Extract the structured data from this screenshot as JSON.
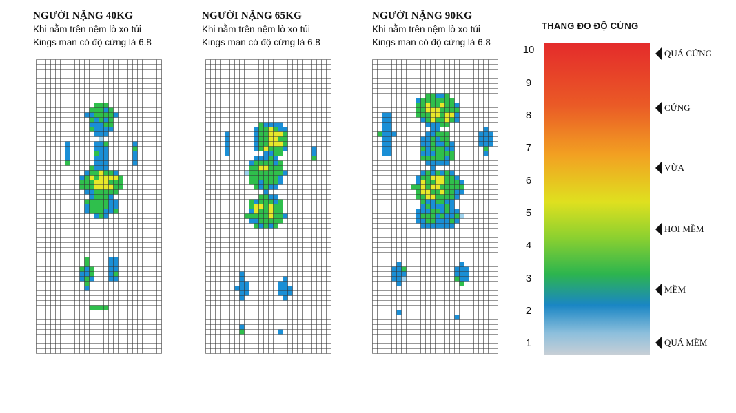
{
  "panels": [
    {
      "title": "NGƯỜI NẶNG 40KG",
      "line1": "Khi nằm trên nệm lò xo túi",
      "line2": "Kings man có độ cứng là 6.8"
    },
    {
      "title": "NGƯỜI NẶNG 65KG",
      "line1": "Khi nằm trên nệm lò xo túi",
      "line2": "Kings man có độ cứng là 6.8"
    },
    {
      "title": "NGƯỜI NẶNG 90KG",
      "line1": "Khi nằm trên nệm lò xo túi",
      "line2": "Kings man có độ cứng là 6.8"
    }
  ],
  "scale": {
    "title": "THANG ĐO ĐỘ CỨNG",
    "ticks": [
      "10",
      "9",
      "8",
      "7",
      "6",
      "5",
      "4",
      "3",
      "2",
      "1"
    ],
    "markers": [
      "QUÁ CỨNG",
      "CỨNG",
      "VỪA",
      "HƠI MỀM",
      "MỀM",
      "QUÁ MỀM"
    ]
  },
  "colors": {
    "grid_line": "#333333",
    "pressure_low": "#1a8fd6",
    "pressure_mid": "#2fbf4c",
    "pressure_high": "#e8e82a",
    "pressure_faint": "#9fd3ee"
  }
}
